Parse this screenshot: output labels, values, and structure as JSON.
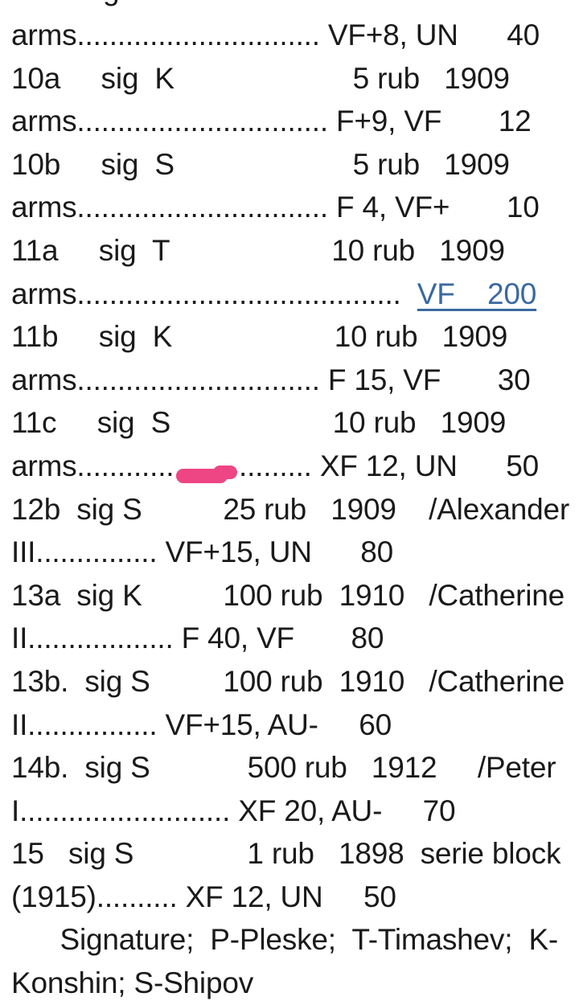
{
  "colors": {
    "background": "#ffffff",
    "text": "#1a1a1a",
    "link_blue": "#3a69a0",
    "highlight_pink": "#ee4585"
  },
  "document": {
    "top_fragment": {
      "text": "g"
    },
    "lines": [
      {
        "segs": [
          {
            "t": "arms.............................. VF+8, UN      40"
          }
        ]
      },
      {
        "segs": [
          {
            "t": "10a     sig  K                      5 rub   1909"
          }
        ]
      },
      {
        "segs": [
          {
            "t": "arms............................... F+9, VF       12"
          }
        ]
      },
      {
        "segs": [
          {
            "t": "10b     sig  S                      5 rub   1909"
          }
        ]
      },
      {
        "segs": [
          {
            "t": "arms............................... F 4, VF+       10"
          }
        ]
      },
      {
        "segs": [
          {
            "t": "11a     sig  T                    10 rub   1909"
          }
        ]
      },
      {
        "segs": [
          {
            "t": "arms........................................  "
          },
          {
            "t": "VF    200",
            "link": true
          }
        ]
      },
      {
        "segs": [
          {
            "t": "11b     sig  K                    10 rub   1909"
          }
        ]
      },
      {
        "segs": [
          {
            "t": "arms.............................. F 15, VF       30"
          }
        ]
      },
      {
        "segs": [
          {
            "t": "11c     sig  S                    10 rub   1909"
          }
        ]
      },
      {
        "segs": [
          {
            "t": "arms............................. XF 12, UN      50"
          }
        ],
        "mark": true
      },
      {
        "segs": [
          {
            "t": "12b  sig S          25 rub   1909    /Alexander"
          }
        ]
      },
      {
        "segs": [
          {
            "t": "III............... VF+15, UN      80"
          }
        ]
      },
      {
        "segs": [
          {
            "t": "13a  sig K          100 rub  1910   /Catherine"
          }
        ]
      },
      {
        "segs": [
          {
            "t": "II.................. F 40, VF       80"
          }
        ]
      },
      {
        "segs": [
          {
            "t": "13b.  sig S         100 rub  1910   /Catherine"
          }
        ]
      },
      {
        "segs": [
          {
            "t": "II................ VF+15, AU-     60"
          }
        ]
      },
      {
        "segs": [
          {
            "t": "14b.  sig S            500 rub   1912     /Peter"
          }
        ]
      },
      {
        "segs": [
          {
            "t": "I.......................... XF 20, AU-     70"
          }
        ]
      },
      {
        "segs": [
          {
            "t": "15   sig S              1 rub   1898  serie block"
          }
        ]
      },
      {
        "segs": [
          {
            "t": "(1915).......... XF 12, UN     50"
          }
        ]
      },
      {
        "segs": [
          {
            "t": "      Signature;  P-Pleske;  T-Timashev;  K-"
          }
        ]
      },
      {
        "segs": [
          {
            "t": "Konshin; S-Shipov"
          }
        ]
      }
    ],
    "annotation": {
      "type": "pink-marker-stroke",
      "over_line": "arms............................. XF 12, UN      50"
    }
  }
}
